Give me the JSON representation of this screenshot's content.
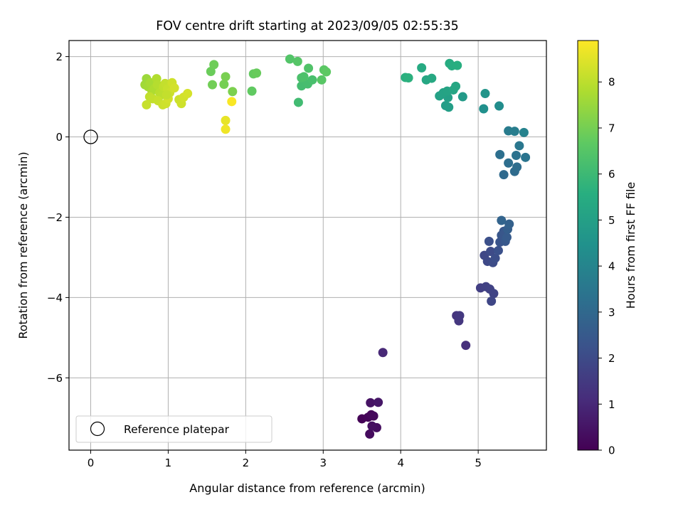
{
  "chart_data": {
    "type": "scatter",
    "title": "FOV centre drift starting at 2023/09/05 02:55:35",
    "xlabel": "Angular distance from reference (arcmin)",
    "ylabel": "Rotation from reference (arcmin)",
    "xlim": [
      -0.28,
      5.88
    ],
    "ylim": [
      -7.8,
      2.4
    ],
    "xticks": [
      0,
      1,
      2,
      3,
      4,
      5
    ],
    "yticks": [
      -6,
      -4,
      -2,
      0,
      2
    ],
    "grid": true,
    "colormap": "viridis",
    "colorbar": {
      "label": "Hours from first FF file",
      "range": [
        0,
        8.9
      ],
      "ticks": [
        0,
        1,
        2,
        3,
        4,
        5,
        6,
        7,
        8
      ]
    },
    "legend": {
      "position": "lower-left",
      "entries": [
        "Reference platepar"
      ]
    },
    "reference_point": {
      "x": 0,
      "y": 0,
      "label": "Reference platepar"
    },
    "points": [
      {
        "x": 3.5,
        "y": -7.02,
        "h": 0.05
      },
      {
        "x": 3.58,
        "y": -6.98,
        "h": 0.1
      },
      {
        "x": 3.62,
        "y": -6.92,
        "h": 0.15
      },
      {
        "x": 3.65,
        "y": -6.95,
        "h": 0.2
      },
      {
        "x": 3.6,
        "y": -7.4,
        "h": 0.25
      },
      {
        "x": 3.69,
        "y": -7.24,
        "h": 0.3
      },
      {
        "x": 3.63,
        "y": -7.2,
        "h": 0.35
      },
      {
        "x": 3.61,
        "y": -6.62,
        "h": 0.45
      },
      {
        "x": 3.71,
        "y": -6.61,
        "h": 0.55
      },
      {
        "x": 3.77,
        "y": -5.37,
        "h": 1.0
      },
      {
        "x": 4.84,
        "y": -5.19,
        "h": 1.2
      },
      {
        "x": 4.72,
        "y": -4.45,
        "h": 1.35
      },
      {
        "x": 4.75,
        "y": -4.58,
        "h": 1.4
      },
      {
        "x": 4.76,
        "y": -4.45,
        "h": 1.45
      },
      {
        "x": 5.03,
        "y": -3.76,
        "h": 1.65
      },
      {
        "x": 5.1,
        "y": -3.73,
        "h": 1.7
      },
      {
        "x": 5.15,
        "y": -3.79,
        "h": 1.75
      },
      {
        "x": 5.2,
        "y": -3.9,
        "h": 1.8
      },
      {
        "x": 5.17,
        "y": -4.09,
        "h": 1.85
      },
      {
        "x": 5.08,
        "y": -2.95,
        "h": 1.9
      },
      {
        "x": 5.12,
        "y": -3.1,
        "h": 1.95
      },
      {
        "x": 5.16,
        "y": -2.85,
        "h": 2.0
      },
      {
        "x": 5.19,
        "y": -3.13,
        "h": 2.05
      },
      {
        "x": 5.22,
        "y": -3.02,
        "h": 2.1
      },
      {
        "x": 5.14,
        "y": -2.6,
        "h": 2.15
      },
      {
        "x": 5.26,
        "y": -2.83,
        "h": 2.2
      },
      {
        "x": 5.28,
        "y": -2.62,
        "h": 2.3
      },
      {
        "x": 5.3,
        "y": -2.45,
        "h": 2.35
      },
      {
        "x": 5.33,
        "y": -2.35,
        "h": 2.4
      },
      {
        "x": 5.35,
        "y": -2.6,
        "h": 2.45
      },
      {
        "x": 5.37,
        "y": -2.5,
        "h": 2.55
      },
      {
        "x": 5.38,
        "y": -2.3,
        "h": 2.65
      },
      {
        "x": 5.4,
        "y": -2.17,
        "h": 2.75
      },
      {
        "x": 5.3,
        "y": -2.08,
        "h": 2.85
      },
      {
        "x": 5.33,
        "y": -0.94,
        "h": 3.05
      },
      {
        "x": 5.47,
        "y": -0.86,
        "h": 3.1
      },
      {
        "x": 5.5,
        "y": -0.75,
        "h": 3.15
      },
      {
        "x": 5.39,
        "y": -0.65,
        "h": 3.2
      },
      {
        "x": 5.28,
        "y": -0.44,
        "h": 3.25
      },
      {
        "x": 5.49,
        "y": -0.46,
        "h": 3.35
      },
      {
        "x": 5.61,
        "y": -0.51,
        "h": 3.4
      },
      {
        "x": 5.53,
        "y": -0.22,
        "h": 3.5
      },
      {
        "x": 5.39,
        "y": 0.15,
        "h": 3.65
      },
      {
        "x": 5.47,
        "y": 0.14,
        "h": 3.75
      },
      {
        "x": 5.59,
        "y": 0.11,
        "h": 3.9
      },
      {
        "x": 5.27,
        "y": 0.77,
        "h": 4.3
      },
      {
        "x": 5.07,
        "y": 0.7,
        "h": 4.4
      },
      {
        "x": 5.09,
        "y": 1.08,
        "h": 4.6
      },
      {
        "x": 4.8,
        "y": 1.0,
        "h": 4.8
      },
      {
        "x": 4.58,
        "y": 0.78,
        "h": 4.9
      },
      {
        "x": 4.62,
        "y": 0.74,
        "h": 4.95
      },
      {
        "x": 4.61,
        "y": 0.98,
        "h": 5.0
      },
      {
        "x": 4.5,
        "y": 1.02,
        "h": 5.05
      },
      {
        "x": 4.55,
        "y": 1.1,
        "h": 5.1
      },
      {
        "x": 4.6,
        "y": 1.14,
        "h": 5.15
      },
      {
        "x": 4.68,
        "y": 1.17,
        "h": 5.2
      },
      {
        "x": 4.71,
        "y": 1.26,
        "h": 5.25
      },
      {
        "x": 4.33,
        "y": 1.42,
        "h": 5.3
      },
      {
        "x": 4.4,
        "y": 1.46,
        "h": 5.35
      },
      {
        "x": 4.27,
        "y": 1.72,
        "h": 5.4
      },
      {
        "x": 4.63,
        "y": 1.83,
        "h": 5.45
      },
      {
        "x": 4.66,
        "y": 1.77,
        "h": 5.5
      },
      {
        "x": 4.73,
        "y": 1.78,
        "h": 5.55
      },
      {
        "x": 4.06,
        "y": 1.48,
        "h": 5.6
      },
      {
        "x": 4.1,
        "y": 1.47,
        "h": 5.65
      },
      {
        "x": 2.68,
        "y": 0.86,
        "h": 6.1
      },
      {
        "x": 2.72,
        "y": 1.27,
        "h": 6.15
      },
      {
        "x": 2.8,
        "y": 1.32,
        "h": 6.2
      },
      {
        "x": 2.86,
        "y": 1.42,
        "h": 6.25
      },
      {
        "x": 2.72,
        "y": 1.47,
        "h": 6.3
      },
      {
        "x": 2.75,
        "y": 1.5,
        "h": 6.35
      },
      {
        "x": 2.81,
        "y": 1.71,
        "h": 6.4
      },
      {
        "x": 2.57,
        "y": 1.94,
        "h": 6.45
      },
      {
        "x": 2.67,
        "y": 1.88,
        "h": 6.5
      },
      {
        "x": 2.98,
        "y": 1.42,
        "h": 6.55
      },
      {
        "x": 3.01,
        "y": 1.67,
        "h": 6.6
      },
      {
        "x": 3.04,
        "y": 1.62,
        "h": 6.65
      },
      {
        "x": 2.08,
        "y": 1.14,
        "h": 6.7
      },
      {
        "x": 2.1,
        "y": 1.57,
        "h": 6.75
      },
      {
        "x": 2.14,
        "y": 1.59,
        "h": 6.8
      },
      {
        "x": 1.55,
        "y": 1.63,
        "h": 6.85
      },
      {
        "x": 1.59,
        "y": 1.8,
        "h": 6.9
      },
      {
        "x": 1.57,
        "y": 1.3,
        "h": 6.95
      },
      {
        "x": 1.72,
        "y": 1.31,
        "h": 7.0
      },
      {
        "x": 1.74,
        "y": 1.5,
        "h": 7.05
      },
      {
        "x": 1.83,
        "y": 1.13,
        "h": 7.1
      },
      {
        "x": 0.72,
        "y": 1.45,
        "h": 7.55
      },
      {
        "x": 0.7,
        "y": 1.3,
        "h": 7.6
      },
      {
        "x": 0.74,
        "y": 1.25,
        "h": 7.65
      },
      {
        "x": 0.77,
        "y": 1.35,
        "h": 7.7
      },
      {
        "x": 0.79,
        "y": 1.15,
        "h": 7.75
      },
      {
        "x": 0.82,
        "y": 1.2,
        "h": 7.8
      },
      {
        "x": 0.85,
        "y": 1.45,
        "h": 7.85
      },
      {
        "x": 0.86,
        "y": 1.3,
        "h": 7.9
      },
      {
        "x": 0.89,
        "y": 1.1,
        "h": 7.95
      },
      {
        "x": 0.92,
        "y": 1.05,
        "h": 8.0
      },
      {
        "x": 0.94,
        "y": 1.25,
        "h": 8.05
      },
      {
        "x": 0.96,
        "y": 1.33,
        "h": 8.1
      },
      {
        "x": 0.99,
        "y": 1.2,
        "h": 8.15
      },
      {
        "x": 1.02,
        "y": 1.1,
        "h": 8.2
      },
      {
        "x": 1.05,
        "y": 1.35,
        "h": 8.25
      },
      {
        "x": 1.08,
        "y": 1.22,
        "h": 8.3
      },
      {
        "x": 0.76,
        "y": 1.0,
        "h": 8.05
      },
      {
        "x": 0.8,
        "y": 0.95,
        "h": 8.1
      },
      {
        "x": 0.87,
        "y": 0.9,
        "h": 8.15
      },
      {
        "x": 0.93,
        "y": 0.8,
        "h": 8.2
      },
      {
        "x": 0.97,
        "y": 0.83,
        "h": 8.25
      },
      {
        "x": 1.0,
        "y": 0.95,
        "h": 8.3
      },
      {
        "x": 0.72,
        "y": 0.8,
        "h": 8.15
      },
      {
        "x": 1.14,
        "y": 0.93,
        "h": 8.2
      },
      {
        "x": 1.17,
        "y": 0.83,
        "h": 8.25
      },
      {
        "x": 1.2,
        "y": 0.99,
        "h": 8.3
      },
      {
        "x": 1.25,
        "y": 1.08,
        "h": 8.35
      },
      {
        "x": 0.98,
        "y": 1.05,
        "h": 8.1
      },
      {
        "x": 1.74,
        "y": 0.41,
        "h": 8.6
      },
      {
        "x": 1.74,
        "y": 0.19,
        "h": 8.7
      },
      {
        "x": 1.82,
        "y": 0.88,
        "h": 8.85
      }
    ]
  }
}
